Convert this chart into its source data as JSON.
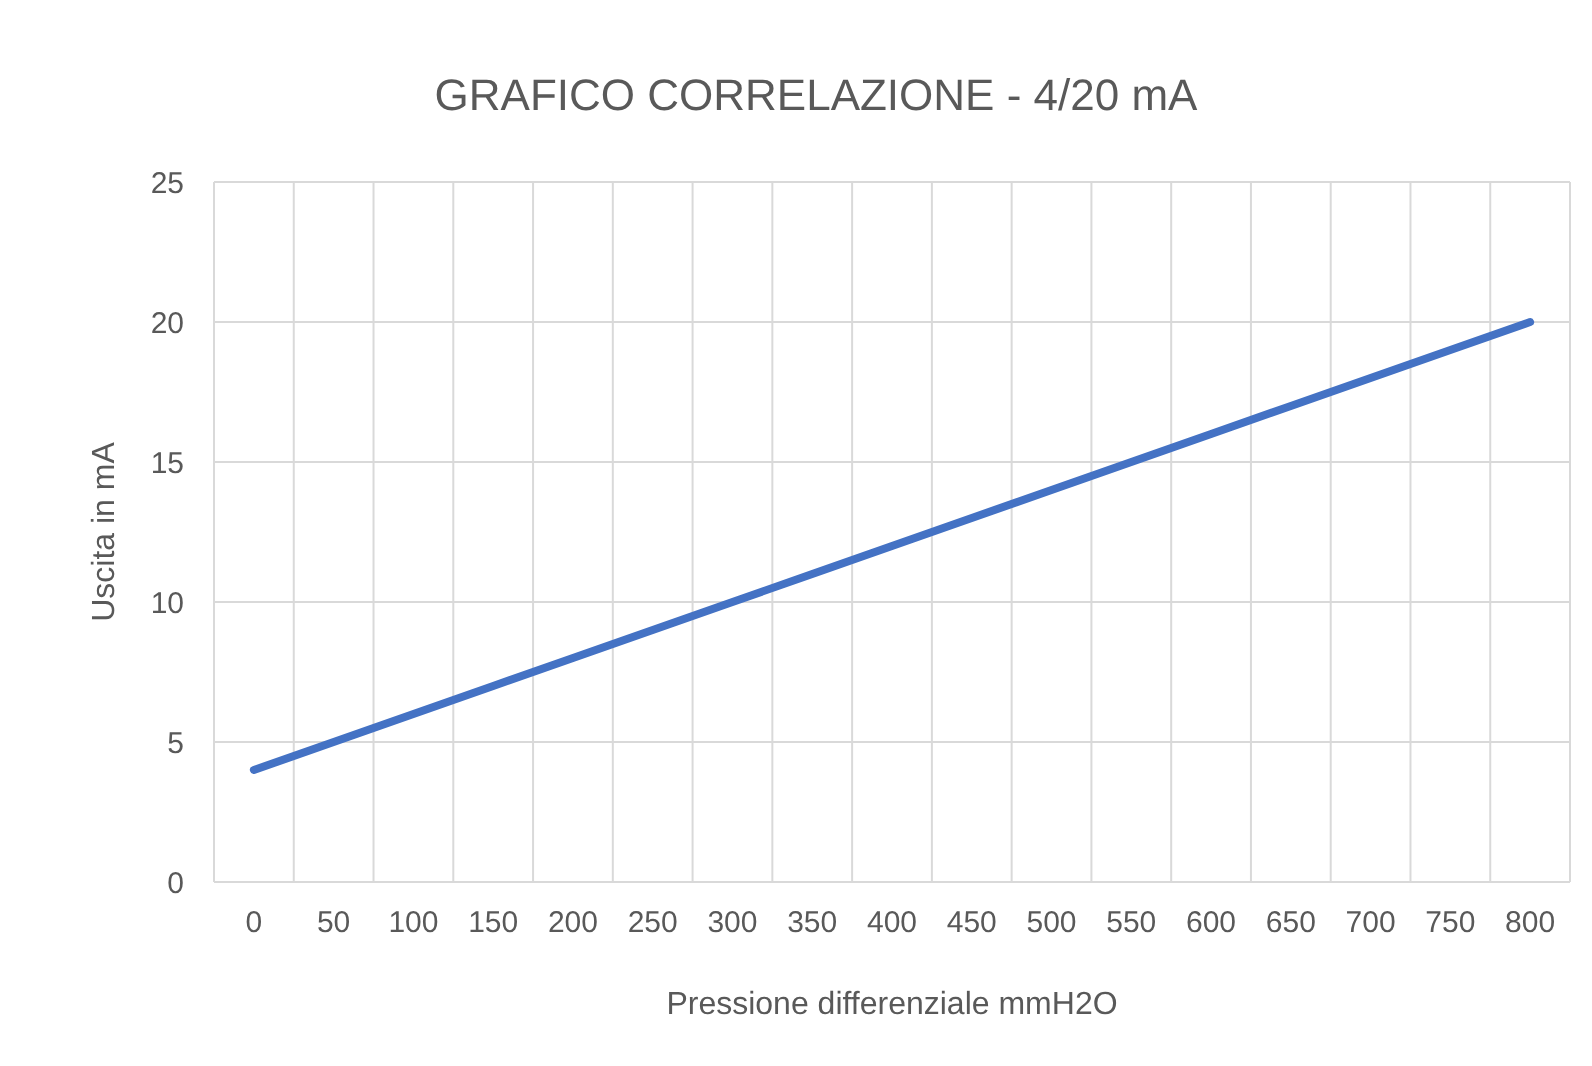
{
  "chart_data": {
    "type": "line",
    "title": "GRAFICO CORRELAZIONE - 4/20 mA",
    "xlabel": "Pressione differenziale  mmH2O",
    "ylabel": "Uscita in mA",
    "categories": [
      "0",
      "50",
      "100",
      "150",
      "200",
      "250",
      "300",
      "350",
      "400",
      "450",
      "500",
      "550",
      "600",
      "650",
      "700",
      "750",
      "800"
    ],
    "series": [
      {
        "color": "#4472c4",
        "values": [
          4,
          5,
          6,
          7,
          8,
          9,
          10,
          11,
          12,
          13,
          14,
          15,
          16,
          17,
          18,
          19,
          20
        ]
      }
    ],
    "ylim": [
      0,
      25
    ],
    "yticks": [
      0,
      5,
      10,
      15,
      20,
      25
    ],
    "grid": true,
    "marker": "none",
    "line_style": "solid"
  }
}
